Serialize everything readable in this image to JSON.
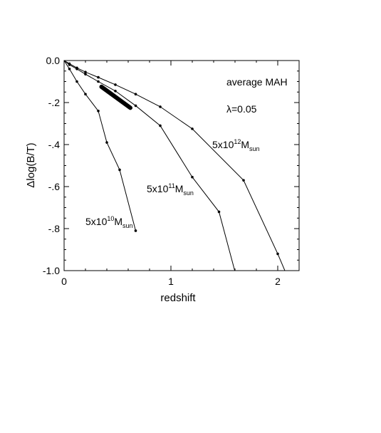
{
  "chart_data": {
    "type": "line",
    "xlabel": "redshift",
    "ylabel": "Δlog(B/T)",
    "xlim": [
      0,
      2.2
    ],
    "ylim": [
      -1.0,
      0.0
    ],
    "x_ticks": [
      "0",
      "1",
      "2"
    ],
    "y_ticks": [
      "0.0",
      "-.2",
      "-.4",
      "-.6",
      "-.8",
      "-1.0"
    ],
    "grid": false,
    "annotations": {
      "avg": "average MAH",
      "lambda": "λ=0.05"
    },
    "series": [
      {
        "label": {
          "base": "5x10",
          "exp": "12",
          "m": "M",
          "sub": "sun"
        },
        "x": [
          0,
          0.05,
          0.12,
          0.2,
          0.32,
          0.48,
          0.67,
          0.9,
          1.2,
          1.68,
          2.0,
          2.15
        ],
        "y": [
          0,
          -0.015,
          -0.035,
          -0.055,
          -0.08,
          -0.115,
          -0.16,
          -0.22,
          -0.325,
          -0.57,
          -0.92,
          -1.1
        ]
      },
      {
        "label": {
          "base": "5x10",
          "exp": "11",
          "m": "M",
          "sub": "sun"
        },
        "x": [
          0,
          0.05,
          0.12,
          0.2,
          0.32,
          0.48,
          0.67,
          0.9,
          1.2,
          1.45,
          1.65
        ],
        "y": [
          0,
          -0.02,
          -0.04,
          -0.065,
          -0.1,
          -0.145,
          -0.215,
          -0.31,
          -0.555,
          -0.72,
          -1.1
        ]
      },
      {
        "label": {
          "base": "5x10",
          "exp": "10",
          "m": "M",
          "sub": "sun"
        },
        "x": [
          0,
          0.05,
          0.12,
          0.2,
          0.32,
          0.4,
          0.52,
          0.67
        ],
        "y": [
          0,
          -0.04,
          -0.1,
          -0.16,
          -0.24,
          -0.39,
          -0.52,
          -0.81
        ]
      }
    ],
    "band": {
      "x": [
        0.35,
        0.62
      ],
      "y": [
        -0.125,
        -0.225
      ]
    }
  }
}
